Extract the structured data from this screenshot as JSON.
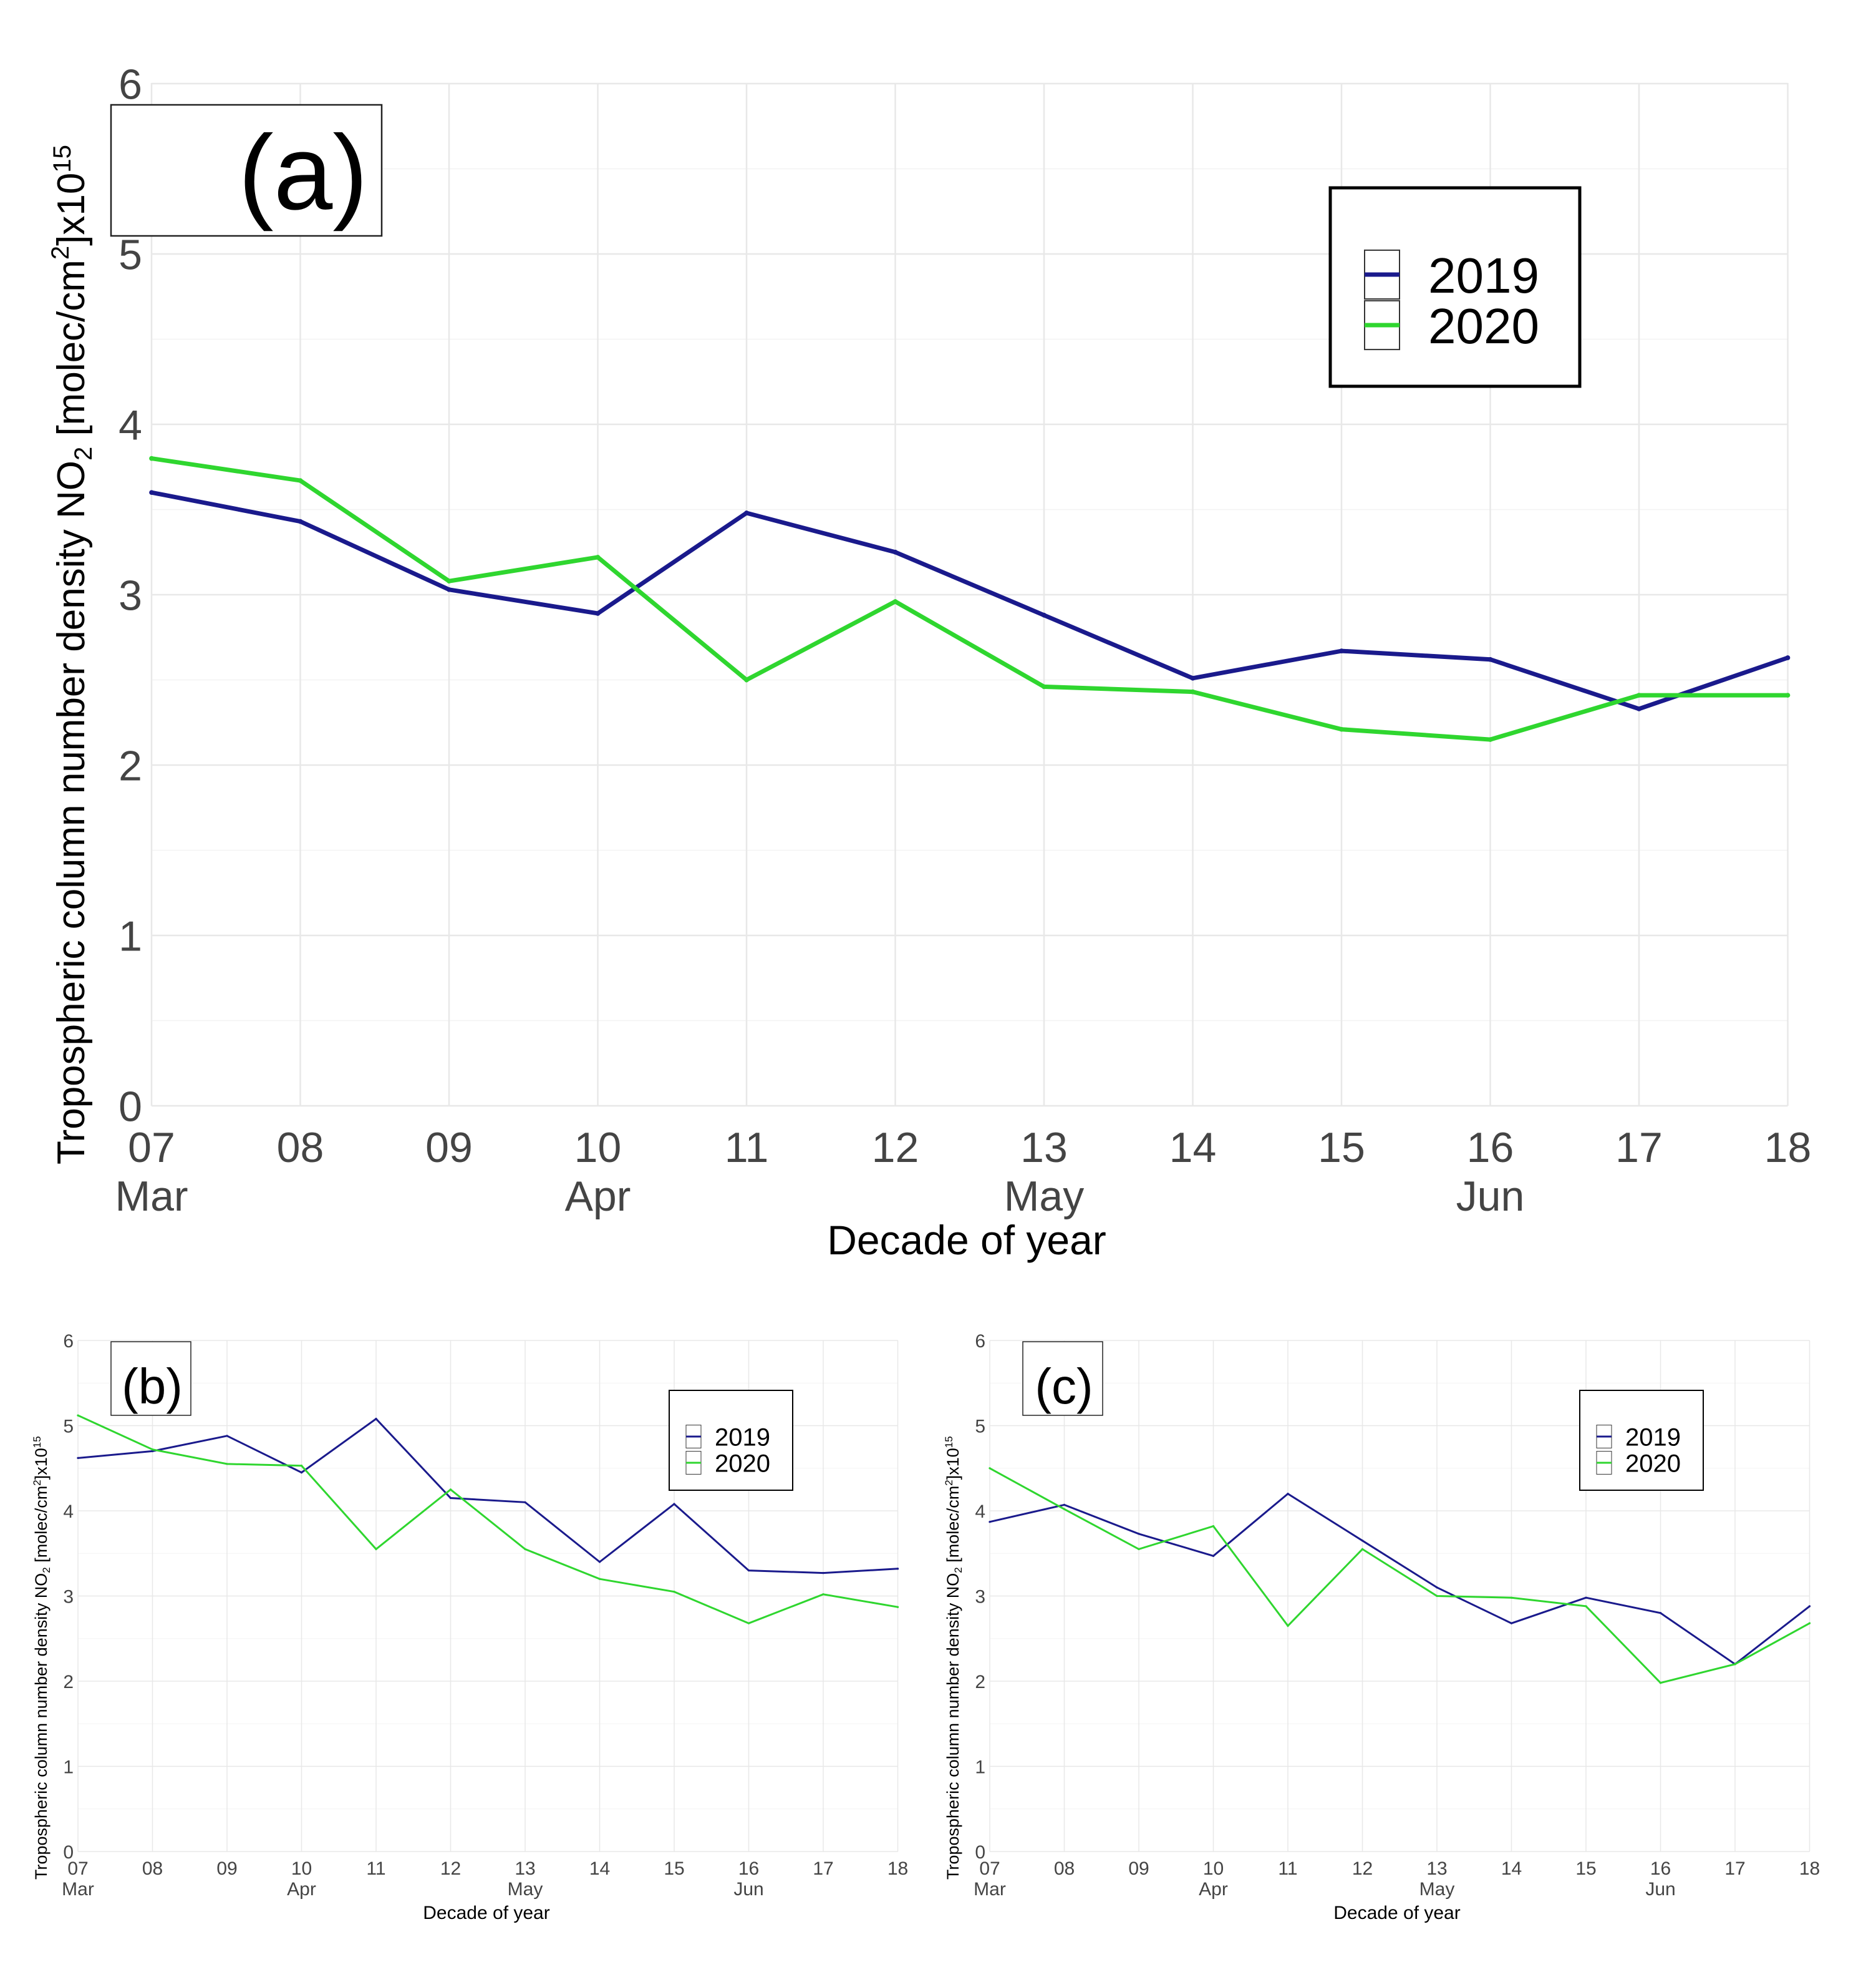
{
  "colors": {
    "y2019": "#1a1a8c",
    "y2020": "#2fd62f"
  },
  "chart_data": [
    {
      "id": "a",
      "type": "line",
      "panel_label": "(a)",
      "title": "",
      "xlabel": "Decade of year",
      "ylabel_main": "Tropospheric column number density NO",
      "ylabel_sub": "2",
      "ylabel_mid": " [molec/cm",
      "ylabel_sup": "2",
      "ylabel_end": "]x10",
      "ylabel_exp": "15",
      "ylim": [
        0,
        6
      ],
      "yticks": [
        "0",
        "1",
        "2",
        "3",
        "4",
        "5",
        "6"
      ],
      "categories": [
        "07",
        "08",
        "09",
        "10",
        "11",
        "12",
        "13",
        "14",
        "15",
        "16",
        "17",
        "18"
      ],
      "months": [
        {
          "index": 0,
          "label": "Mar"
        },
        {
          "index": 3,
          "label": "Apr"
        },
        {
          "index": 6,
          "label": "May"
        },
        {
          "index": 9,
          "label": "Jun"
        }
      ],
      "legend_position": "top-right",
      "series": [
        {
          "name": "2019",
          "values": [
            3.6,
            3.43,
            3.03,
            2.89,
            3.48,
            3.25,
            2.88,
            2.51,
            2.67,
            2.62,
            2.33,
            2.63
          ]
        },
        {
          "name": "2020",
          "values": [
            3.8,
            3.67,
            3.08,
            3.22,
            2.5,
            2.96,
            2.46,
            2.43,
            2.21,
            2.15,
            2.41,
            2.41
          ]
        }
      ]
    },
    {
      "id": "b",
      "type": "line",
      "panel_label": "(b)",
      "title": "",
      "xlabel": "Decade of year",
      "ylabel_main": "Tropospheric column number density NO",
      "ylabel_sub": "2",
      "ylabel_mid": " [molec/cm",
      "ylabel_sup": "2",
      "ylabel_end": "]x10",
      "ylabel_exp": "15",
      "ylim": [
        0,
        6
      ],
      "yticks": [
        "0",
        "1",
        "2",
        "3",
        "4",
        "5",
        "6"
      ],
      "categories": [
        "07",
        "08",
        "09",
        "10",
        "11",
        "12",
        "13",
        "14",
        "15",
        "16",
        "17",
        "18"
      ],
      "months": [
        {
          "index": 0,
          "label": "Mar"
        },
        {
          "index": 3,
          "label": "Apr"
        },
        {
          "index": 6,
          "label": "May"
        },
        {
          "index": 9,
          "label": "Jun"
        }
      ],
      "legend_position": "top-right",
      "series": [
        {
          "name": "2019",
          "values": [
            4.62,
            4.7,
            4.88,
            4.45,
            5.08,
            4.15,
            4.1,
            3.4,
            4.08,
            3.3,
            3.27,
            3.32
          ]
        },
        {
          "name": "2020",
          "values": [
            5.12,
            4.72,
            4.55,
            4.53,
            3.55,
            4.25,
            3.55,
            3.2,
            3.05,
            2.68,
            3.02,
            2.87
          ]
        }
      ]
    },
    {
      "id": "c",
      "type": "line",
      "panel_label": "(c)",
      "title": "",
      "xlabel": "Decade of year",
      "ylabel_main": "Tropospheric column number density NO",
      "ylabel_sub": "2",
      "ylabel_mid": " [molec/cm",
      "ylabel_sup": "2",
      "ylabel_end": "]x10",
      "ylabel_exp": "15",
      "ylim": [
        0,
        6
      ],
      "yticks": [
        "0",
        "1",
        "2",
        "3",
        "4",
        "5",
        "6"
      ],
      "categories": [
        "07",
        "08",
        "09",
        "10",
        "11",
        "12",
        "13",
        "14",
        "15",
        "16",
        "17",
        "18"
      ],
      "months": [
        {
          "index": 0,
          "label": "Mar"
        },
        {
          "index": 3,
          "label": "Apr"
        },
        {
          "index": 6,
          "label": "May"
        },
        {
          "index": 9,
          "label": "Jun"
        }
      ],
      "legend_position": "top-right",
      "series": [
        {
          "name": "2019",
          "values": [
            3.87,
            4.07,
            3.73,
            3.47,
            4.2,
            3.65,
            3.1,
            2.68,
            2.98,
            2.8,
            2.2,
            2.88
          ]
        },
        {
          "name": "2020",
          "values": [
            4.5,
            4.02,
            3.55,
            3.82,
            2.65,
            3.55,
            3.0,
            2.98,
            2.88,
            1.98,
            2.2,
            2.68
          ]
        }
      ]
    }
  ]
}
